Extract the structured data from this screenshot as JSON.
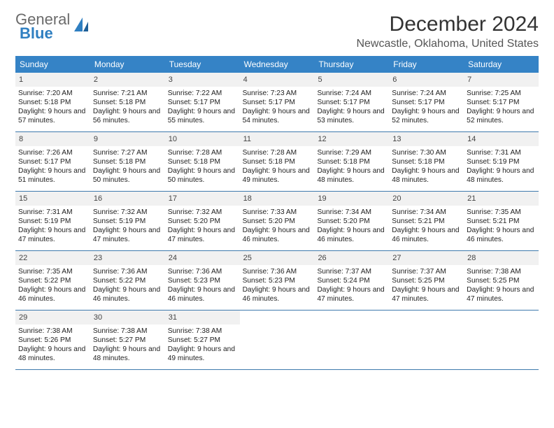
{
  "brand": {
    "word1": "General",
    "word2": "Blue"
  },
  "title": "December 2024",
  "location": "Newcastle, Oklahoma, United States",
  "colors": {
    "header_bg": "#3583c6",
    "divider": "#3e7aad",
    "daynum_bg": "#f1f1f1",
    "brand_blue": "#2f7fc1",
    "brand_gray": "#6b6b6b"
  },
  "days_of_week": [
    "Sunday",
    "Monday",
    "Tuesday",
    "Wednesday",
    "Thursday",
    "Friday",
    "Saturday"
  ],
  "weeks": [
    [
      {
        "n": "1",
        "sunrise": "7:20 AM",
        "sunset": "5:18 PM",
        "daylight": "9 hours and 57 minutes."
      },
      {
        "n": "2",
        "sunrise": "7:21 AM",
        "sunset": "5:18 PM",
        "daylight": "9 hours and 56 minutes."
      },
      {
        "n": "3",
        "sunrise": "7:22 AM",
        "sunset": "5:17 PM",
        "daylight": "9 hours and 55 minutes."
      },
      {
        "n": "4",
        "sunrise": "7:23 AM",
        "sunset": "5:17 PM",
        "daylight": "9 hours and 54 minutes."
      },
      {
        "n": "5",
        "sunrise": "7:24 AM",
        "sunset": "5:17 PM",
        "daylight": "9 hours and 53 minutes."
      },
      {
        "n": "6",
        "sunrise": "7:24 AM",
        "sunset": "5:17 PM",
        "daylight": "9 hours and 52 minutes."
      },
      {
        "n": "7",
        "sunrise": "7:25 AM",
        "sunset": "5:17 PM",
        "daylight": "9 hours and 52 minutes."
      }
    ],
    [
      {
        "n": "8",
        "sunrise": "7:26 AM",
        "sunset": "5:17 PM",
        "daylight": "9 hours and 51 minutes."
      },
      {
        "n": "9",
        "sunrise": "7:27 AM",
        "sunset": "5:18 PM",
        "daylight": "9 hours and 50 minutes."
      },
      {
        "n": "10",
        "sunrise": "7:28 AM",
        "sunset": "5:18 PM",
        "daylight": "9 hours and 50 minutes."
      },
      {
        "n": "11",
        "sunrise": "7:28 AM",
        "sunset": "5:18 PM",
        "daylight": "9 hours and 49 minutes."
      },
      {
        "n": "12",
        "sunrise": "7:29 AM",
        "sunset": "5:18 PM",
        "daylight": "9 hours and 48 minutes."
      },
      {
        "n": "13",
        "sunrise": "7:30 AM",
        "sunset": "5:18 PM",
        "daylight": "9 hours and 48 minutes."
      },
      {
        "n": "14",
        "sunrise": "7:31 AM",
        "sunset": "5:19 PM",
        "daylight": "9 hours and 48 minutes."
      }
    ],
    [
      {
        "n": "15",
        "sunrise": "7:31 AM",
        "sunset": "5:19 PM",
        "daylight": "9 hours and 47 minutes."
      },
      {
        "n": "16",
        "sunrise": "7:32 AM",
        "sunset": "5:19 PM",
        "daylight": "9 hours and 47 minutes."
      },
      {
        "n": "17",
        "sunrise": "7:32 AM",
        "sunset": "5:20 PM",
        "daylight": "9 hours and 47 minutes."
      },
      {
        "n": "18",
        "sunrise": "7:33 AM",
        "sunset": "5:20 PM",
        "daylight": "9 hours and 46 minutes."
      },
      {
        "n": "19",
        "sunrise": "7:34 AM",
        "sunset": "5:20 PM",
        "daylight": "9 hours and 46 minutes."
      },
      {
        "n": "20",
        "sunrise": "7:34 AM",
        "sunset": "5:21 PM",
        "daylight": "9 hours and 46 minutes."
      },
      {
        "n": "21",
        "sunrise": "7:35 AM",
        "sunset": "5:21 PM",
        "daylight": "9 hours and 46 minutes."
      }
    ],
    [
      {
        "n": "22",
        "sunrise": "7:35 AM",
        "sunset": "5:22 PM",
        "daylight": "9 hours and 46 minutes."
      },
      {
        "n": "23",
        "sunrise": "7:36 AM",
        "sunset": "5:22 PM",
        "daylight": "9 hours and 46 minutes."
      },
      {
        "n": "24",
        "sunrise": "7:36 AM",
        "sunset": "5:23 PM",
        "daylight": "9 hours and 46 minutes."
      },
      {
        "n": "25",
        "sunrise": "7:36 AM",
        "sunset": "5:23 PM",
        "daylight": "9 hours and 46 minutes."
      },
      {
        "n": "26",
        "sunrise": "7:37 AM",
        "sunset": "5:24 PM",
        "daylight": "9 hours and 47 minutes."
      },
      {
        "n": "27",
        "sunrise": "7:37 AM",
        "sunset": "5:25 PM",
        "daylight": "9 hours and 47 minutes."
      },
      {
        "n": "28",
        "sunrise": "7:38 AM",
        "sunset": "5:25 PM",
        "daylight": "9 hours and 47 minutes."
      }
    ],
    [
      {
        "n": "29",
        "sunrise": "7:38 AM",
        "sunset": "5:26 PM",
        "daylight": "9 hours and 48 minutes."
      },
      {
        "n": "30",
        "sunrise": "7:38 AM",
        "sunset": "5:27 PM",
        "daylight": "9 hours and 48 minutes."
      },
      {
        "n": "31",
        "sunrise": "7:38 AM",
        "sunset": "5:27 PM",
        "daylight": "9 hours and 49 minutes."
      },
      null,
      null,
      null,
      null
    ]
  ],
  "labels": {
    "sunrise": "Sunrise:",
    "sunset": "Sunset:",
    "daylight": "Daylight:"
  }
}
